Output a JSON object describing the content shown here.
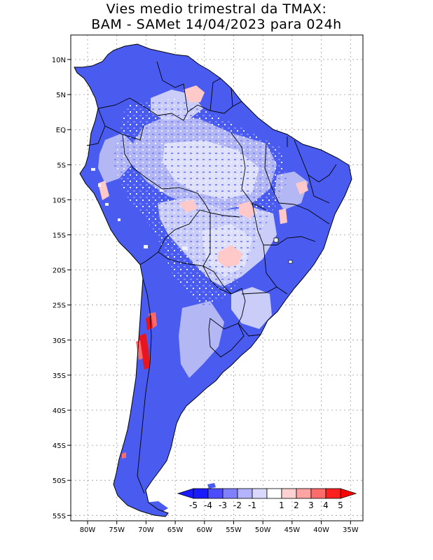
{
  "title": {
    "line1": "Vies medio trimestral da TMAX:",
    "line2": "BAM - SAMet 14/04/2023  para 024h"
  },
  "axes": {
    "lat_labels": [
      "10N",
      "5N",
      "EQ",
      "5S",
      "10S",
      "15S",
      "20S",
      "25S",
      "30S",
      "35S",
      "40S",
      "45S",
      "50S",
      "55S"
    ],
    "lon_labels": [
      "80W",
      "75W",
      "70W",
      "65W",
      "60W",
      "55W",
      "50W",
      "45W",
      "40W",
      "35W"
    ]
  },
  "colorbar": {
    "labels": [
      "-5",
      "-4",
      "-3",
      "-2",
      "-1",
      "1",
      "2",
      "3",
      "4",
      "5"
    ],
    "colors": [
      "#1a1aff",
      "#4d4dff",
      "#8080ff",
      "#b3b3ff",
      "#d9d9ff",
      "#ffffff",
      "#ffd1d1",
      "#ffa3a3",
      "#ff6b6b",
      "#ff2020"
    ]
  },
  "colors": {
    "land_base": "#4a5cf0",
    "light_blue": "#b3b8f5",
    "pale": "#dfe1fb",
    "pink": "#ffc9c9",
    "red": "#e8141e",
    "ocean": "#ffffff",
    "grid": "#999999"
  }
}
